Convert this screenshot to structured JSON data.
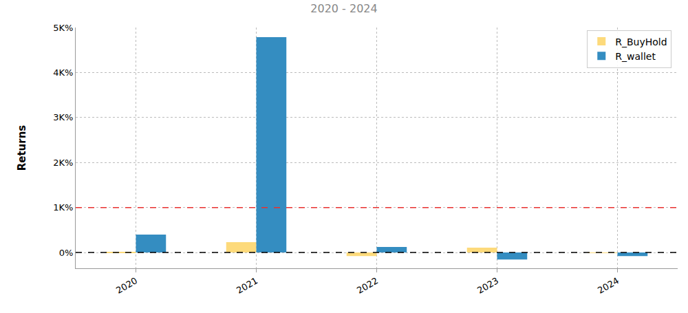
{
  "chart_data": {
    "type": "bar",
    "title": "2020 - 2024",
    "y_label": "Returns",
    "categories": [
      "2020",
      "2021",
      "2022",
      "2023",
      "2024"
    ],
    "series": [
      {
        "name": "R_BuyHold",
        "color": "#fdda7b",
        "values": [
          5,
          230,
          -77,
          108,
          -5
        ]
      },
      {
        "name": "R_wallet",
        "color": "#348dc1",
        "values": [
          400,
          4785,
          123,
          -154,
          -77
        ]
      }
    ],
    "hlines": [
      {
        "value": 1000,
        "color": "#e8312f",
        "line_style": "dashed"
      },
      {
        "value": 0,
        "color": "#000000",
        "line_style": "dashed"
      }
    ],
    "ylim": [
      -350,
      5000
    ],
    "yticks": [
      {
        "value": 0,
        "label": "0%"
      },
      {
        "value": 1000,
        "label": "1K%"
      },
      {
        "value": 2000,
        "label": "2K%"
      },
      {
        "value": 3000,
        "label": "3K%"
      },
      {
        "value": 4000,
        "label": "4K%"
      },
      {
        "value": 5000,
        "label": "5K%"
      }
    ],
    "grid": true,
    "legend": "top right"
  }
}
